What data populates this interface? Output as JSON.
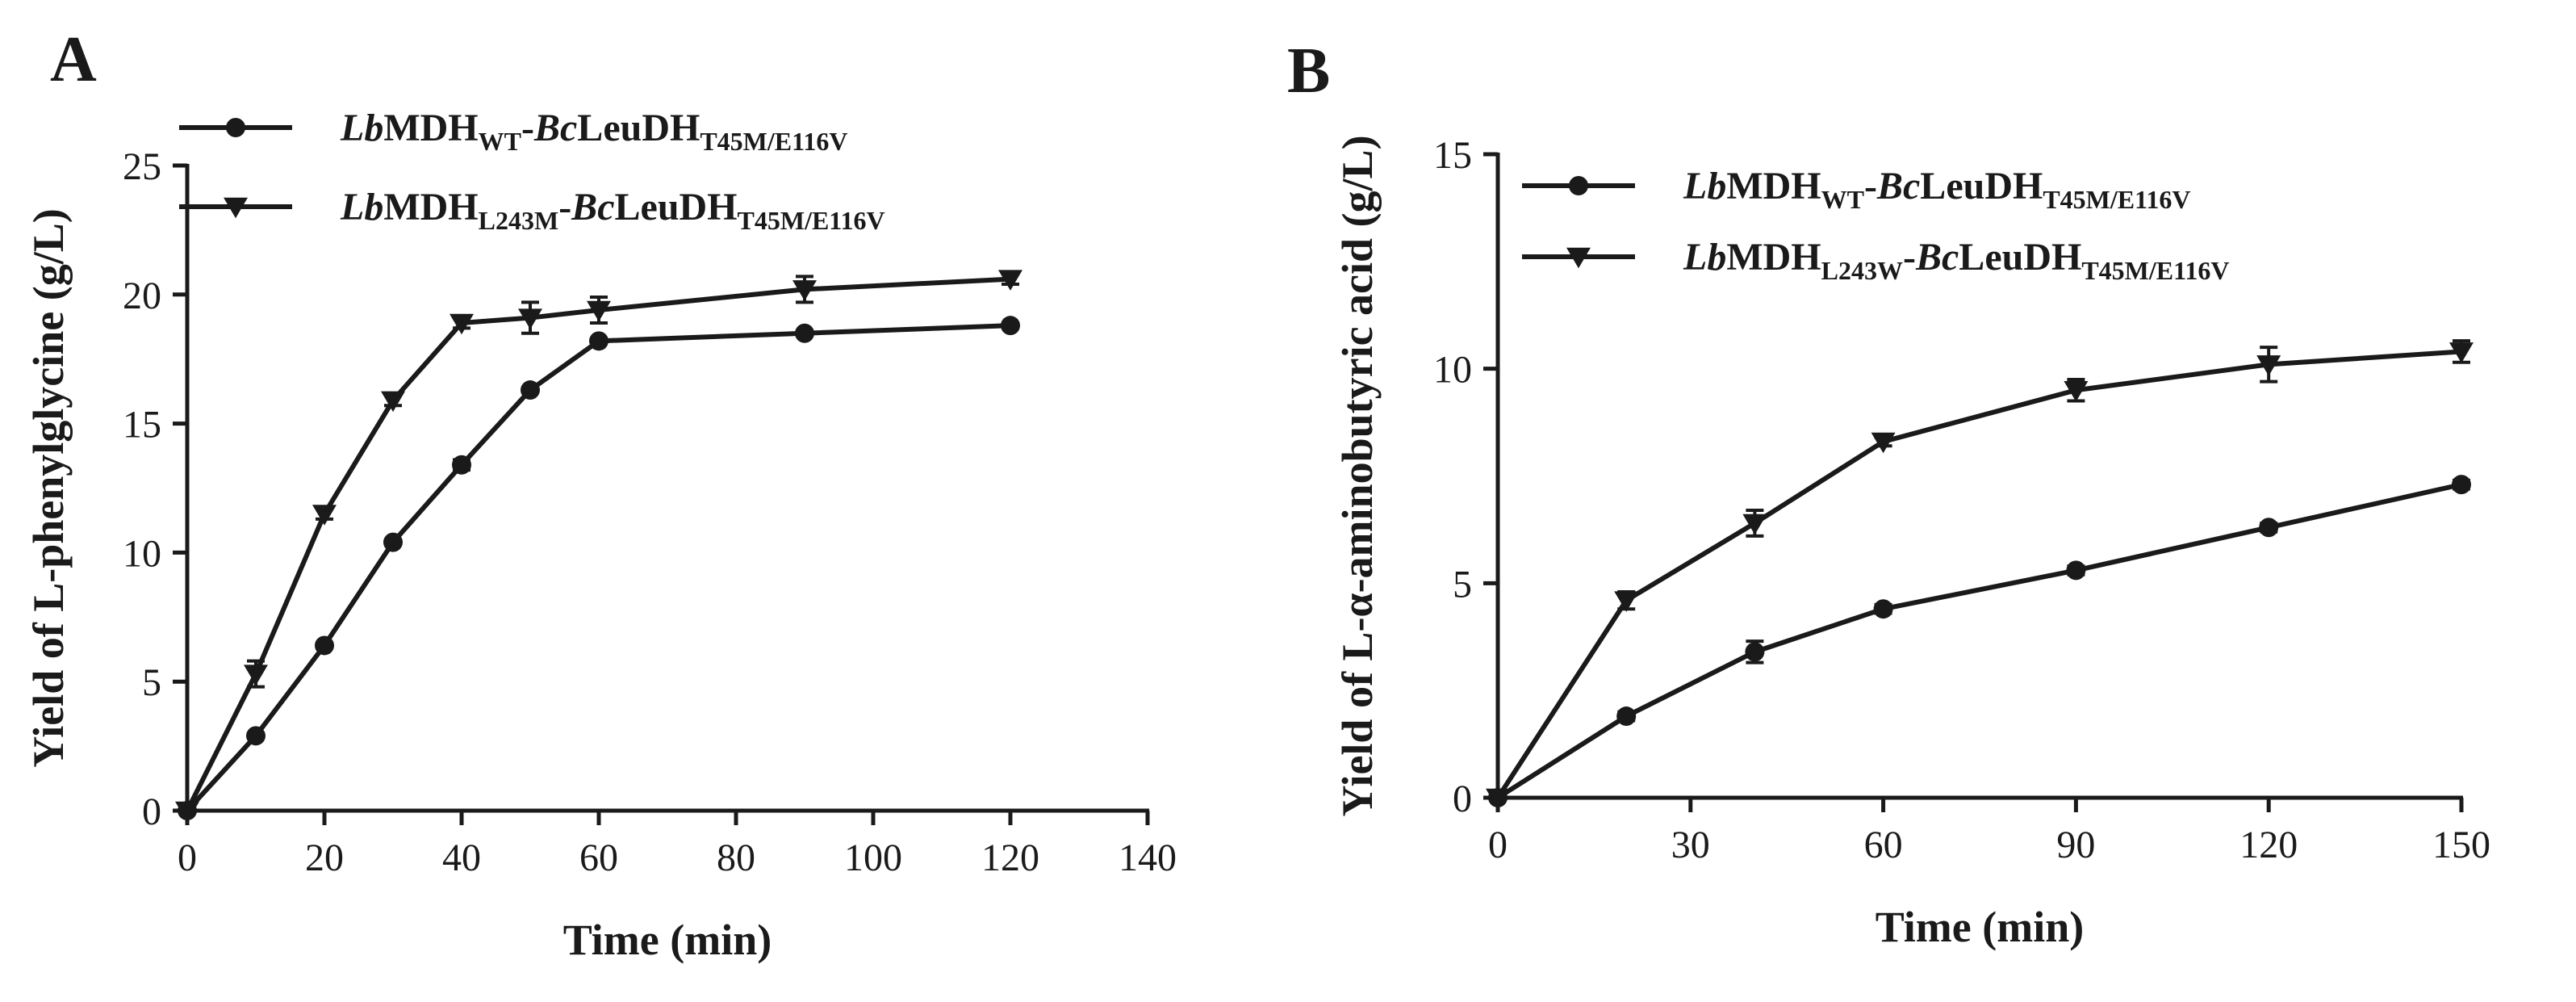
{
  "colors": {
    "ink": "#1a1a1a",
    "background": "#ffffff"
  },
  "chart_data": [
    {
      "panel": "A",
      "type": "line",
      "xlabel": "Time (min)",
      "ylabel": "Yield of L-phenylglycine (g/L)",
      "xlim": [
        0,
        140
      ],
      "ylim": [
        0,
        25
      ],
      "xticks": [
        0,
        20,
        40,
        60,
        80,
        100,
        120,
        140
      ],
      "yticks": [
        0,
        5,
        10,
        15,
        20,
        25
      ],
      "grid": false,
      "legend_position": "top-left",
      "series": [
        {
          "name": "LbMDH_WT-BcLeuDH_T45M/E116V",
          "legend": [
            {
              "t": "Lb",
              "style": "it"
            },
            {
              "t": "MDH",
              "style": "n"
            },
            {
              "t": "WT",
              "style": "sub"
            },
            {
              "t": "-",
              "style": "n"
            },
            {
              "t": "Bc",
              "style": "it"
            },
            {
              "t": "LeuDH",
              "style": "n"
            },
            {
              "t": "T45M/E116V",
              "style": "sub"
            }
          ],
          "marker": "circle",
          "x": [
            0,
            10,
            20,
            30,
            40,
            50,
            60,
            90,
            120
          ],
          "y": [
            0,
            2.9,
            6.4,
            10.4,
            13.4,
            16.3,
            18.2,
            18.5,
            18.8
          ],
          "err": [
            0,
            0.1,
            0.1,
            0.1,
            0.2,
            0.1,
            0.1,
            0.1,
            0.1
          ]
        },
        {
          "name": "LbMDH_L243M-BcLeuDH_T45M/E116V",
          "legend": [
            {
              "t": "Lb",
              "style": "it"
            },
            {
              "t": "MDH",
              "style": "n"
            },
            {
              "t": "L243M",
              "style": "sub"
            },
            {
              "t": "-",
              "style": "n"
            },
            {
              "t": "Bc",
              "style": "it"
            },
            {
              "t": "LeuDH",
              "style": "n"
            },
            {
              "t": "T45M/E116V",
              "style": "sub"
            }
          ],
          "marker": "triangle-down",
          "x": [
            0,
            10,
            20,
            30,
            40,
            50,
            60,
            90,
            120
          ],
          "y": [
            0,
            5.3,
            11.5,
            15.9,
            18.9,
            19.1,
            19.4,
            20.2,
            20.6
          ],
          "err": [
            0,
            0.5,
            0.2,
            0.2,
            0.2,
            0.6,
            0.5,
            0.5,
            0.2
          ]
        }
      ]
    },
    {
      "panel": "B",
      "type": "line",
      "xlabel": "Time (min)",
      "ylabel": "Yield of L-α-aminobutyric acid (g/L)",
      "xlim": [
        0,
        150
      ],
      "ylim": [
        0,
        15
      ],
      "xticks": [
        0,
        30,
        60,
        90,
        120,
        150
      ],
      "yticks": [
        0,
        5,
        10,
        15
      ],
      "grid": false,
      "legend_position": "top-left",
      "series": [
        {
          "name": "LbMDH_WT-BcLeuDH_T45M/E116V",
          "legend": [
            {
              "t": "Lb",
              "style": "it"
            },
            {
              "t": "MDH",
              "style": "n"
            },
            {
              "t": "WT",
              "style": "sub"
            },
            {
              "t": "-",
              "style": "n"
            },
            {
              "t": "Bc",
              "style": "it"
            },
            {
              "t": "LeuDH",
              "style": "n"
            },
            {
              "t": "T45M/E116V",
              "style": "sub"
            }
          ],
          "marker": "circle",
          "x": [
            0,
            20,
            40,
            60,
            90,
            120,
            150
          ],
          "y": [
            0,
            1.9,
            3.4,
            4.4,
            5.3,
            6.3,
            7.3
          ],
          "err": [
            0,
            0.1,
            0.25,
            0.1,
            0.1,
            0.1,
            0.1
          ]
        },
        {
          "name": "LbMDH_L243W-BcLeuDH_T45M/E116V",
          "legend": [
            {
              "t": "Lb",
              "style": "it"
            },
            {
              "t": "MDH",
              "style": "n"
            },
            {
              "t": "L243W",
              "style": "sub"
            },
            {
              "t": "-",
              "style": "n"
            },
            {
              "t": "Bc",
              "style": "it"
            },
            {
              "t": "LeuDH",
              "style": "n"
            },
            {
              "t": "T45M/E116V",
              "style": "sub"
            }
          ],
          "marker": "triangle-down",
          "x": [
            0,
            20,
            40,
            60,
            90,
            120,
            150
          ],
          "y": [
            0,
            4.6,
            6.4,
            8.3,
            9.5,
            10.1,
            10.4
          ],
          "err": [
            0,
            0.2,
            0.3,
            0.1,
            0.25,
            0.4,
            0.25
          ]
        }
      ]
    }
  ]
}
